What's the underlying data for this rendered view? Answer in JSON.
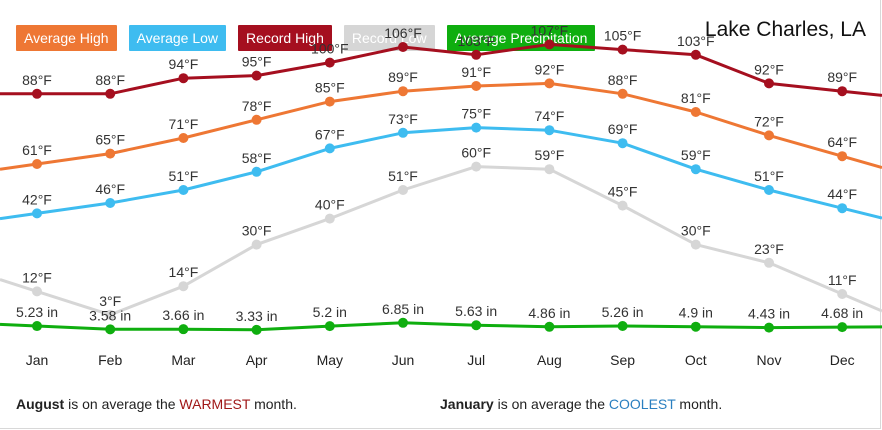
{
  "legend": [
    {
      "label": "Average High",
      "color": "#ee7734"
    },
    {
      "label": "Average Low",
      "color": "#3ebcf0"
    },
    {
      "label": "Record High",
      "color": "#a50f1f"
    },
    {
      "label": "Record Low",
      "color": "#d6d6d6"
    },
    {
      "label": "Average Precipitation",
      "color": "#0fae0f"
    }
  ],
  "title": "Lake Charles, LA",
  "chart_data": {
    "type": "line",
    "title": "Lake Charles, LA",
    "categories": [
      "Jan",
      "Feb",
      "Mar",
      "Apr",
      "May",
      "Jun",
      "Jul",
      "Aug",
      "Sep",
      "Oct",
      "Nov",
      "Dec"
    ],
    "series": [
      {
        "name": "Average High",
        "color": "#ee7734",
        "unit": "°F",
        "values": [
          61,
          65,
          71,
          78,
          85,
          89,
          91,
          92,
          88,
          81,
          72,
          64
        ]
      },
      {
        "name": "Average Low",
        "color": "#3ebcf0",
        "unit": "°F",
        "values": [
          42,
          46,
          51,
          58,
          67,
          73,
          75,
          74,
          69,
          59,
          51,
          44
        ]
      },
      {
        "name": "Record High",
        "color": "#a50f1f",
        "unit": "°F",
        "values": [
          88,
          88,
          94,
          95,
          100,
          106,
          103,
          107,
          105,
          103,
          92,
          89
        ]
      },
      {
        "name": "Record Low",
        "color": "#d6d6d6",
        "unit": "°F",
        "values": [
          12,
          3,
          14,
          30,
          40,
          51,
          60,
          59,
          45,
          30,
          23,
          11
        ]
      },
      {
        "name": "Average Precipitation",
        "color": "#0fae0f",
        "unit": " in",
        "values": [
          5.23,
          3.58,
          3.66,
          3.33,
          5.2,
          6.85,
          5.63,
          4.86,
          5.26,
          4.9,
          4.43,
          4.68
        ]
      }
    ],
    "grid": false,
    "legend_position": "top-left"
  },
  "footer": {
    "warm_month": "August",
    "warm_pre": " is on average the ",
    "warm_word": "WARMEST",
    "warm_post": " month.",
    "cool_month": "January",
    "cool_pre": " is on average the ",
    "cool_word": "COOLEST",
    "cool_post": " month."
  }
}
